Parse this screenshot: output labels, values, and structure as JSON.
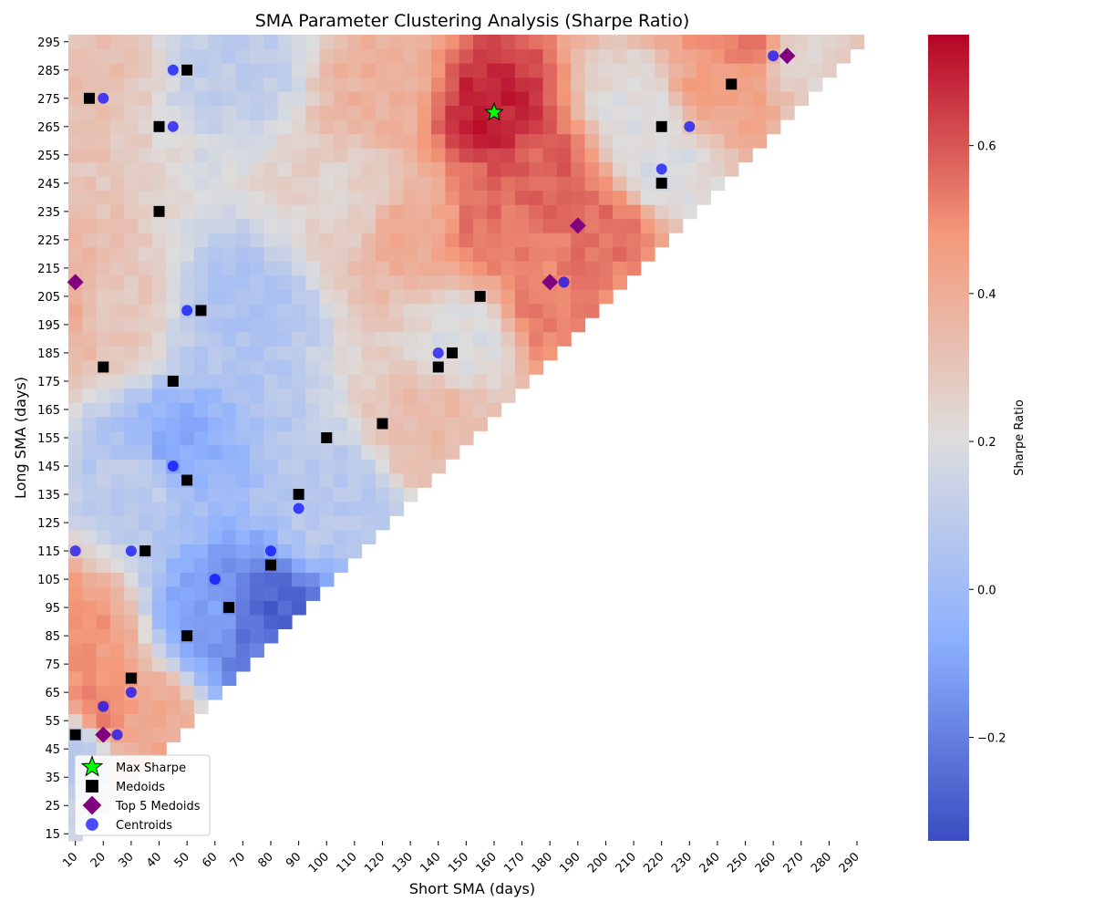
{
  "chart_data": {
    "type": "heatmap",
    "title": "SMA Parameter Clustering Analysis (Sharpe Ratio)",
    "xlabel": "Short SMA (days)",
    "ylabel": "Long SMA (days)",
    "colorbar_label": "Sharpe Ratio",
    "colormap": "coolwarm",
    "color_range": [
      -0.34,
      0.75
    ],
    "colorbar_ticks": [
      "−0.2",
      "0.0",
      "0.2",
      "0.4",
      "0.6"
    ],
    "colorbar_tick_values": [
      -0.2,
      0.0,
      0.2,
      0.4,
      0.6
    ],
    "grid_step_days": 5,
    "x_range": [
      10,
      300
    ],
    "y_range": [
      15,
      300
    ],
    "x_ticks": [
      "10",
      "20",
      "30",
      "40",
      "50",
      "60",
      "70",
      "80",
      "90",
      "100",
      "110",
      "120",
      "130",
      "140",
      "150",
      "160",
      "170",
      "180",
      "190",
      "200",
      "210",
      "220",
      "230",
      "240",
      "250",
      "260",
      "270",
      "280",
      "290"
    ],
    "y_ticks": [
      "295",
      "285",
      "275",
      "265",
      "255",
      "245",
      "235",
      "225",
      "215",
      "205",
      "195",
      "185",
      "175",
      "165",
      "155",
      "145",
      "135",
      "125",
      "115",
      "105",
      "95",
      "85",
      "75",
      "65",
      "55",
      "45",
      "35",
      "25",
      "15"
    ],
    "sharpe_anchors": [
      {
        "short": 10,
        "long": 45,
        "value": 0.08
      },
      {
        "short": 10,
        "long": 85,
        "value": 0.48
      },
      {
        "short": 10,
        "long": 200,
        "value": 0.42
      },
      {
        "short": 10,
        "long": 290,
        "value": 0.33
      },
      {
        "short": 20,
        "long": 60,
        "value": 0.52
      },
      {
        "short": 20,
        "long": 200,
        "value": 0.28
      },
      {
        "short": 35,
        "long": 55,
        "value": 0.42
      },
      {
        "short": 35,
        "long": 140,
        "value": 0.1
      },
      {
        "short": 45,
        "long": 150,
        "value": -0.08
      },
      {
        "short": 60,
        "long": 90,
        "value": -0.12
      },
      {
        "short": 75,
        "long": 85,
        "value": -0.22
      },
      {
        "short": 80,
        "long": 90,
        "value": -0.28
      },
      {
        "short": 70,
        "long": 200,
        "value": 0.05
      },
      {
        "short": 70,
        "long": 290,
        "value": 0.1
      },
      {
        "short": 100,
        "long": 130,
        "value": 0.08
      },
      {
        "short": 110,
        "long": 240,
        "value": 0.25
      },
      {
        "short": 120,
        "long": 280,
        "value": 0.38
      },
      {
        "short": 140,
        "long": 160,
        "value": 0.35
      },
      {
        "short": 150,
        "long": 190,
        "value": 0.2
      },
      {
        "short": 130,
        "long": 230,
        "value": 0.4
      },
      {
        "short": 160,
        "long": 270,
        "value": 0.7
      },
      {
        "short": 160,
        "long": 230,
        "value": 0.55
      },
      {
        "short": 180,
        "long": 250,
        "value": 0.58
      },
      {
        "short": 180,
        "long": 200,
        "value": 0.52
      },
      {
        "short": 200,
        "long": 230,
        "value": 0.55
      },
      {
        "short": 210,
        "long": 270,
        "value": 0.2
      },
      {
        "short": 220,
        "long": 250,
        "value": 0.18
      },
      {
        "short": 240,
        "long": 280,
        "value": 0.45
      },
      {
        "short": 270,
        "long": 290,
        "value": 0.25
      },
      {
        "short": 250,
        "long": 295,
        "value": 0.55
      }
    ],
    "series": [
      {
        "name": "Max Sharpe",
        "marker": "star",
        "color": "#00ff00",
        "points": [
          {
            "x": 160,
            "y": 270
          }
        ]
      },
      {
        "name": "Medoids",
        "marker": "square",
        "color": "#000000",
        "points": [
          {
            "x": 15,
            "y": 275
          },
          {
            "x": 50,
            "y": 285
          },
          {
            "x": 40,
            "y": 265
          },
          {
            "x": 40,
            "y": 235
          },
          {
            "x": 55,
            "y": 200
          },
          {
            "x": 20,
            "y": 180
          },
          {
            "x": 45,
            "y": 175
          },
          {
            "x": 50,
            "y": 140
          },
          {
            "x": 35,
            "y": 115
          },
          {
            "x": 65,
            "y": 95
          },
          {
            "x": 50,
            "y": 85
          },
          {
            "x": 30,
            "y": 70
          },
          {
            "x": 10,
            "y": 50
          },
          {
            "x": 80,
            "y": 110
          },
          {
            "x": 90,
            "y": 135
          },
          {
            "x": 100,
            "y": 155
          },
          {
            "x": 120,
            "y": 160
          },
          {
            "x": 140,
            "y": 180
          },
          {
            "x": 145,
            "y": 185
          },
          {
            "x": 155,
            "y": 205
          },
          {
            "x": 220,
            "y": 265
          },
          {
            "x": 220,
            "y": 245
          },
          {
            "x": 245,
            "y": 280
          }
        ]
      },
      {
        "name": "Top 5 Medoids",
        "marker": "diamond",
        "color": "#800080",
        "points": [
          {
            "x": 10,
            "y": 210
          },
          {
            "x": 20,
            "y": 50
          },
          {
            "x": 180,
            "y": 210
          },
          {
            "x": 190,
            "y": 230
          },
          {
            "x": 265,
            "y": 290
          }
        ]
      },
      {
        "name": "Centroids",
        "marker": "circle",
        "color": "#0000ff",
        "points": [
          {
            "x": 20,
            "y": 275
          },
          {
            "x": 45,
            "y": 285
          },
          {
            "x": 45,
            "y": 265
          },
          {
            "x": 50,
            "y": 200
          },
          {
            "x": 45,
            "y": 145
          },
          {
            "x": 10,
            "y": 115
          },
          {
            "x": 30,
            "y": 115
          },
          {
            "x": 60,
            "y": 105
          },
          {
            "x": 80,
            "y": 115
          },
          {
            "x": 90,
            "y": 130
          },
          {
            "x": 30,
            "y": 65
          },
          {
            "x": 20,
            "y": 60
          },
          {
            "x": 25,
            "y": 50
          },
          {
            "x": 140,
            "y": 185
          },
          {
            "x": 185,
            "y": 210
          },
          {
            "x": 220,
            "y": 250
          },
          {
            "x": 230,
            "y": 265
          },
          {
            "x": 260,
            "y": 290
          }
        ]
      }
    ],
    "legend_position": "lower-left"
  }
}
